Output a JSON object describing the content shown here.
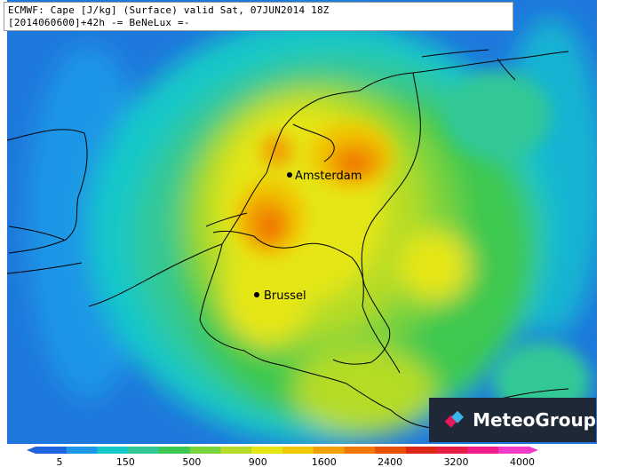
{
  "header": {
    "line1": "ECMWF: Cape [J/kg] (Surface) valid Sat, 07JUN2014 18Z",
    "line2": "[2014060600]+42h -= BeNeLux =-"
  },
  "cities": [
    {
      "name": "Amsterdam"
    },
    {
      "name": "Brussel"
    }
  ],
  "brand": {
    "name": "MeteoGroup",
    "colors": [
      "#e6185a",
      "#3cb4e6"
    ]
  },
  "legend": {
    "ticks": [
      "5",
      "150",
      "500",
      "900",
      "1600",
      "2400",
      "3200",
      "4000"
    ],
    "colors": [
      "#1e64dc",
      "#1e96e6",
      "#14c8c8",
      "#32c896",
      "#3cc850",
      "#78d23c",
      "#b4dc28",
      "#e6e614",
      "#f0c800",
      "#f0a000",
      "#f07800",
      "#e65000",
      "#dc2814",
      "#e61e46",
      "#f01e8c",
      "#f03cc8"
    ]
  }
}
